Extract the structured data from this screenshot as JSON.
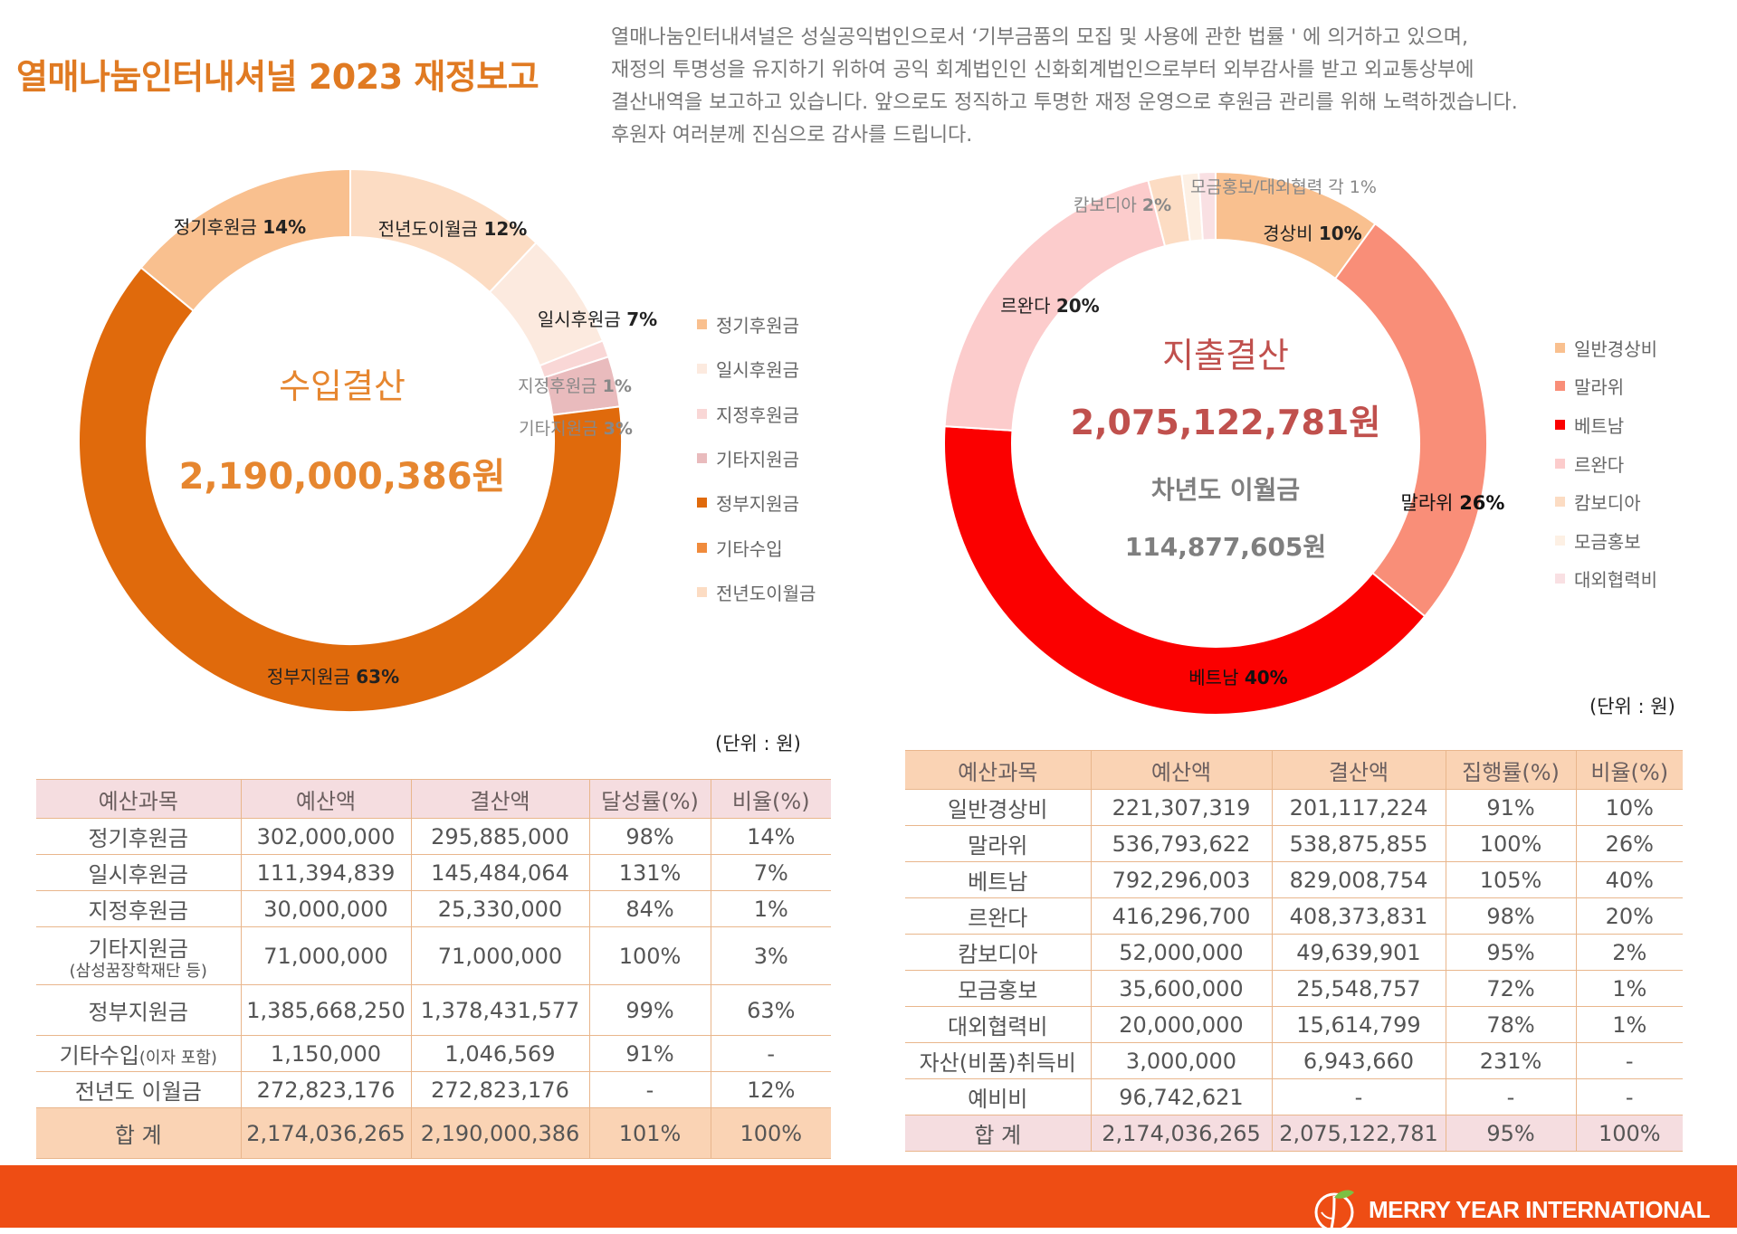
{
  "title": "열매나눔인터내셔널 2023 재정보고",
  "intro": [
    "열매나눔인터내셔널은 성실공익법인으로서 ‘기부금품의 모집 및 사용에 관한 법률 ' 에 의거하고 있으며,",
    "재정의 투명성을 유지하기 위하여 공익 회계법인인 신화회계법인으로부터 외부감사를 받고 외교통상부에",
    "결산내역을 보고하고 있습니다. 앞으로도 정직하고 투명한 재정 운영으로 후원금 관리를 위해 노력하겠습니다.",
    "후원자 여러분께 진심으로 감사를 드립니다."
  ],
  "chart_data": [
    {
      "type": "pie",
      "center_title": "수입결산",
      "center_value": "2,190,000,386원",
      "slices": [
        {
          "name": "정기후원금",
          "value": 14,
          "color": "#F9C08F",
          "label": "정기후원금",
          "pct": "14%"
        },
        {
          "name": "일시후원금",
          "value": 7,
          "color": "#FCEADF",
          "label": "일시후원금",
          "pct": "7%"
        },
        {
          "name": "지정후원금",
          "value": 1,
          "color": "#F9D7D6",
          "label": "지정후원금",
          "pct": "1%"
        },
        {
          "name": "기타지원금",
          "value": 3,
          "color": "#E9BBBD",
          "label": "기타지원금",
          "pct": "3%"
        },
        {
          "name": "정부지원금",
          "value": 63,
          "color": "#E06A0C",
          "label": "정부지원금",
          "pct": "63%"
        },
        {
          "name": "기타수입",
          "value": 0,
          "color": "#F08B3C",
          "label": "",
          "pct": ""
        },
        {
          "name": "전년도이월금",
          "value": 12,
          "color": "#FCDCC3",
          "label": "전년도이월금",
          "pct": "12%"
        }
      ]
    },
    {
      "type": "pie",
      "center_title": "지출결산",
      "center_value": "2,075,122,781원",
      "center_sub_title": "차년도 이월금",
      "center_sub_value": "114,877,605원",
      "slices": [
        {
          "name": "일반경상비",
          "value": 10,
          "color": "#F9C08F",
          "label": "경상비",
          "pct": "10%"
        },
        {
          "name": "말라위",
          "value": 26,
          "color": "#F98E78",
          "label": "말라위",
          "pct": "26%"
        },
        {
          "name": "베트남",
          "value": 40,
          "color": "#FB0000",
          "label": "베트남",
          "pct": "40%"
        },
        {
          "name": "르완다",
          "value": 20,
          "color": "#FCCCCC",
          "label": "르완다",
          "pct": "20%"
        },
        {
          "name": "캄보디아",
          "value": 2,
          "color": "#FCDCC3",
          "label": "캄보디아",
          "pct": "2%"
        },
        {
          "name": "모금홍보",
          "value": 1,
          "color": "#FDF0E4",
          "label": "",
          "pct": ""
        },
        {
          "name": "대외협력비",
          "value": 1,
          "color": "#F9E0E3",
          "label": "",
          "pct": ""
        }
      ],
      "extra_label": "모금홍보/대외협력 각 1%"
    }
  ],
  "unit_label": "(단위 : 원)",
  "income_table": {
    "headers": [
      "예산과목",
      "예산액",
      "결산액",
      "달성률(%)",
      "비율(%)"
    ],
    "rows": [
      [
        "정기후원금",
        "302,000,000",
        "295,885,000",
        "98%",
        "14%"
      ],
      [
        "일시후원금",
        "111,394,839",
        "145,484,064",
        "131%",
        "7%"
      ],
      [
        "지정후원금",
        "30,000,000",
        "25,330,000",
        "84%",
        "1%"
      ],
      [
        "기타지원금",
        "71,000,000",
        "71,000,000",
        "100%",
        "3%"
      ],
      [
        "정부지원금",
        "1,385,668,250",
        "1,378,431,577",
        "99%",
        "63%"
      ],
      [
        "기타수입",
        "1,150,000",
        "1,046,569",
        "91%",
        "-"
      ],
      [
        "전년도 이월금",
        "272,823,176",
        "272,823,176",
        "-",
        "12%"
      ]
    ],
    "row_subs": [
      "",
      "",
      "",
      "(삼성꿈장학재단 등)",
      "",
      "(이자 포함)",
      ""
    ],
    "total": [
      "합 계",
      "2,174,036,265",
      "2,190,000,386",
      "101%",
      "100%"
    ]
  },
  "expense_table": {
    "headers": [
      "예산과목",
      "예산액",
      "결산액",
      "집행률(%)",
      "비율(%)"
    ],
    "rows": [
      [
        "일반경상비",
        "221,307,319",
        "201,117,224",
        "91%",
        "10%"
      ],
      [
        "말라위",
        "536,793,622",
        "538,875,855",
        "100%",
        "26%"
      ],
      [
        "베트남",
        "792,296,003",
        "829,008,754",
        "105%",
        "40%"
      ],
      [
        "르완다",
        "416,296,700",
        "408,373,831",
        "98%",
        "20%"
      ],
      [
        "캄보디아",
        "52,000,000",
        "49,639,901",
        "95%",
        "2%"
      ],
      [
        "모금홍보",
        "35,600,000",
        "25,548,757",
        "72%",
        "1%"
      ],
      [
        "대외협력비",
        "20,000,000",
        "15,614,799",
        "78%",
        "1%"
      ],
      [
        "자산(비품)취득비",
        "3,000,000",
        "6,943,660",
        "231%",
        "-"
      ],
      [
        "예비비",
        "96,742,621",
        "-",
        "-",
        "-"
      ]
    ],
    "total": [
      "합 계",
      "2,174,036,265",
      "2,075,122,781",
      "95%",
      "100%"
    ]
  },
  "footer": {
    "brand": "MERRY YEAR INTERNATIONAL"
  },
  "colors": {
    "accent": "#E07A22",
    "footer": "#EE4D14",
    "expense_center": "#C0504D"
  }
}
